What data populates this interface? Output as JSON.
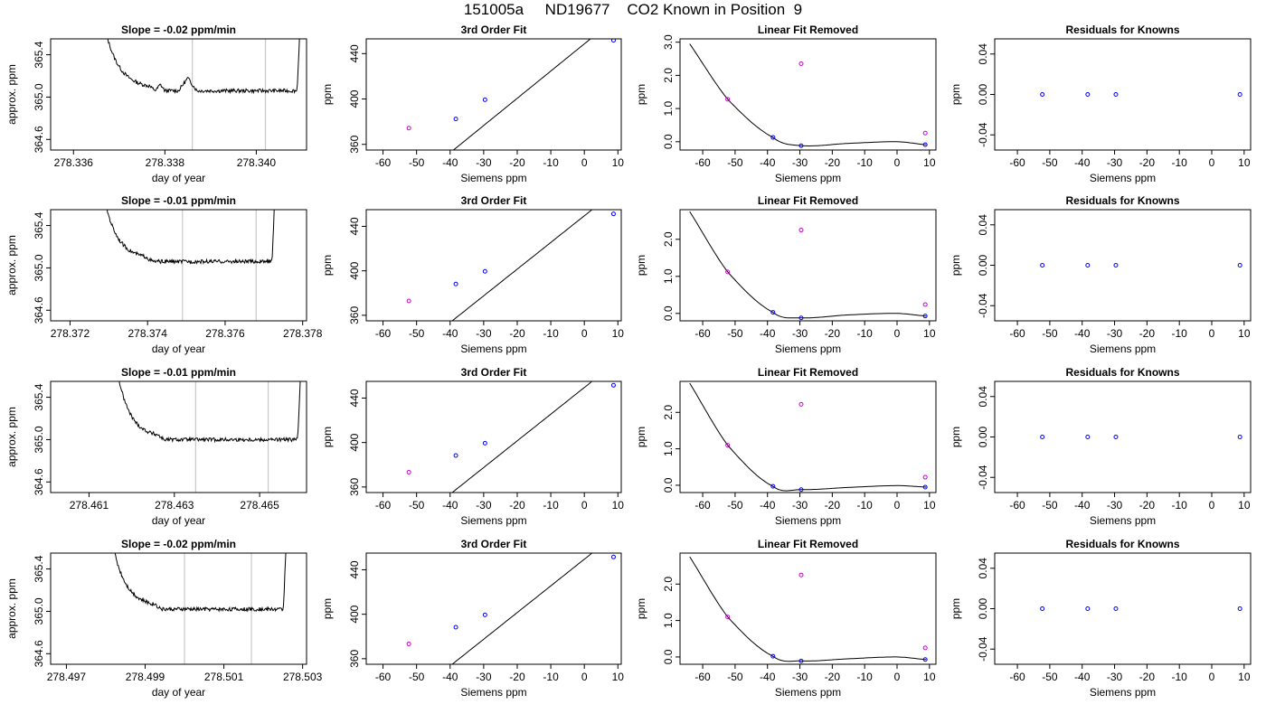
{
  "figure_title": "151005a     ND19677    CO2 Known in Position  9",
  "colors": {
    "line": "#000000",
    "known_point": "#0000ff",
    "flagged_point": "#cc00cc",
    "window_line": "#c8c8c8"
  },
  "chart_data": [
    {
      "type": "line",
      "title": "Slope =  -0.02  ppm/min",
      "xlabel": "day of year",
      "ylabel": "approx. ppm",
      "xlim": [
        278.3355,
        278.3411
      ],
      "ylim": [
        364.5,
        365.55
      ],
      "xticks": [
        278.336,
        278.338,
        278.34
      ],
      "xtick_labels": [
        "278.336",
        "278.338",
        "278.340"
      ],
      "yticks": [
        364.6,
        365.0,
        365.4
      ],
      "ytick_labels": [
        "364.6",
        "365.0",
        "365.4"
      ],
      "window_lines": [
        278.3386,
        278.3402
      ],
      "trace": {
        "x0": 278.3367,
        "x1": 278.341,
        "rise_left": 0.23,
        "rise_right": 0.975,
        "baseline": 365.06,
        "bumps": [
          {
            "x": 278.3385,
            "dy": 0.12,
            "w": 0.0002
          },
          {
            "x": 278.3379,
            "dy": 0.06,
            "w": 0.0001
          }
        ]
      }
    },
    {
      "type": "scatter",
      "title": "3rd Order Fit",
      "xlabel": "Siemens ppm",
      "ylabel": "ppm",
      "xlim": [
        -65,
        11
      ],
      "ylim": [
        355,
        453
      ],
      "xticks": [
        -60,
        -50,
        -40,
        -30,
        -20,
        -10,
        0,
        10
      ],
      "xtick_labels": [
        "-60",
        "-50",
        "-40",
        "-30",
        "-20",
        "-10",
        "0",
        "10"
      ],
      "yticks": [
        360,
        400,
        440
      ],
      "ytick_labels": [
        "360",
        "400",
        "440"
      ],
      "curve": {
        "kind": "linear",
        "a": 448.6,
        "b": 2.4,
        "x0": -64,
        "x1": 10
      },
      "points": [
        {
          "x": -52.3,
          "y": 374.3,
          "color": "flagged"
        },
        {
          "x": -38.3,
          "y": 382.4,
          "color": "known"
        },
        {
          "x": -29.6,
          "y": 399.3,
          "color": "known"
        },
        {
          "x": 8.7,
          "y": 451.7,
          "color": "known"
        }
      ]
    },
    {
      "type": "scatter",
      "title": "Linear Fit Removed",
      "xlabel": "Siemens ppm",
      "ylabel": "ppm",
      "xlim": [
        -67,
        12
      ],
      "ylim": [
        -0.25,
        3.1
      ],
      "xticks": [
        -60,
        -50,
        -40,
        -30,
        -20,
        -10,
        0,
        10
      ],
      "xtick_labels": [
        "-60",
        "-50",
        "-40",
        "-30",
        "-20",
        "-10",
        "0",
        "10"
      ],
      "yticks": [
        0.0,
        1.0,
        2.0,
        3.0
      ],
      "ytick_labels": [
        "0.0",
        "1.0",
        "2.0",
        "3.0"
      ],
      "curve": {
        "kind": "cubic",
        "x0": -64,
        "x1": 9,
        "knots": [
          [
            -64,
            2.95
          ],
          [
            -52.3,
            1.28
          ],
          [
            -38.3,
            0.13
          ],
          [
            -29.6,
            -0.12
          ],
          [
            -15,
            -0.05
          ],
          [
            0,
            0.0
          ],
          [
            8.7,
            -0.09
          ]
        ]
      },
      "points": [
        {
          "x": -52.3,
          "y": 1.28,
          "color": "flagged"
        },
        {
          "x": -38.3,
          "y": 0.13,
          "color": "known"
        },
        {
          "x": -29.6,
          "y": -0.12,
          "color": "known"
        },
        {
          "x": 8.7,
          "y": -0.09,
          "color": "known"
        },
        {
          "x": -29.6,
          "y": 2.35,
          "color": "flagged"
        },
        {
          "x": 8.7,
          "y": 0.26,
          "color": "flagged"
        }
      ]
    },
    {
      "type": "scatter",
      "title": "Residuals for Knowns",
      "xlabel": "Siemens ppm",
      "ylabel": "ppm",
      "xlim": [
        -67,
        12
      ],
      "ylim": [
        -0.055,
        0.055
      ],
      "xticks": [
        -60,
        -50,
        -40,
        -30,
        -20,
        -10,
        0,
        10
      ],
      "xtick_labels": [
        "-60",
        "-50",
        "-40",
        "-30",
        "-20",
        "-10",
        "0",
        "10"
      ],
      "yticks": [
        -0.04,
        0.0,
        0.04
      ],
      "ytick_labels": [
        "-0.04",
        "0.00",
        "0.04"
      ],
      "points": [
        {
          "x": -52.3,
          "y": 0,
          "color": "known"
        },
        {
          "x": -38.3,
          "y": 0,
          "color": "known"
        },
        {
          "x": -29.6,
          "y": 0,
          "color": "known"
        },
        {
          "x": 8.7,
          "y": 0,
          "color": "known"
        }
      ]
    },
    {
      "type": "line",
      "title": "Slope =  -0.01  ppm/min",
      "xlabel": "day of year",
      "ylabel": "approx. ppm",
      "xlim": [
        278.3715,
        278.3781
      ],
      "ylim": [
        364.5,
        365.55
      ],
      "xticks": [
        278.372,
        278.374,
        278.376,
        278.378
      ],
      "xtick_labels": [
        "278.372",
        "278.374",
        "278.376",
        "278.378"
      ],
      "window_lines": [
        278.3749,
        278.3768
      ],
      "yticks": [
        364.6,
        365.0,
        365.4
      ],
      "ytick_labels": [
        "364.6",
        "365.0",
        "365.4"
      ],
      "trace": {
        "x0": 278.3729,
        "x1": 278.3773,
        "rise_left": 0.25,
        "rise_right": 0.98,
        "baseline": 365.06,
        "bumps": []
      }
    },
    {
      "type": "scatter",
      "title": "3rd Order Fit",
      "xlabel": "Siemens ppm",
      "ylabel": "ppm",
      "xlim": [
        -65,
        11
      ],
      "ylim": [
        355,
        455
      ],
      "xticks": [
        -60,
        -50,
        -40,
        -30,
        -20,
        -10,
        0,
        10
      ],
      "xtick_labels": [
        "-60",
        "-50",
        "-40",
        "-30",
        "-20",
        "-10",
        "0",
        "10"
      ],
      "yticks": [
        360,
        400,
        440
      ],
      "ytick_labels": [
        "360",
        "400",
        "440"
      ],
      "curve": {
        "kind": "linear",
        "a": 449.5,
        "b": 2.4,
        "x0": -64,
        "x1": 10
      },
      "points": [
        {
          "x": -52.3,
          "y": 372.9,
          "color": "flagged"
        },
        {
          "x": -38.3,
          "y": 388.1,
          "color": "known"
        },
        {
          "x": -29.6,
          "y": 399.5,
          "color": "known"
        },
        {
          "x": 8.7,
          "y": 451.2,
          "color": "known"
        }
      ]
    },
    {
      "type": "scatter",
      "title": "Linear Fit Removed",
      "xlabel": "Siemens ppm",
      "ylabel": "ppm",
      "xlim": [
        -67,
        12
      ],
      "ylim": [
        -0.2,
        2.8
      ],
      "xticks": [
        -60,
        -50,
        -40,
        -30,
        -20,
        -10,
        0,
        10
      ],
      "xtick_labels": [
        "-60",
        "-50",
        "-40",
        "-30",
        "-20",
        "-10",
        "0",
        "10"
      ],
      "yticks": [
        0.0,
        1.0,
        2.0
      ],
      "ytick_labels": [
        "0.0",
        "1.0",
        "2.0"
      ],
      "curve": {
        "kind": "cubic",
        "x0": -64,
        "x1": 9,
        "knots": [
          [
            -64,
            2.75
          ],
          [
            -52.3,
            1.12
          ],
          [
            -38.3,
            0.03
          ],
          [
            -29.6,
            -0.12
          ],
          [
            -15,
            -0.04
          ],
          [
            0,
            0.0
          ],
          [
            8.7,
            -0.07
          ]
        ]
      },
      "points": [
        {
          "x": -52.3,
          "y": 1.12,
          "color": "flagged"
        },
        {
          "x": -38.3,
          "y": 0.03,
          "color": "known"
        },
        {
          "x": -29.6,
          "y": -0.12,
          "color": "known"
        },
        {
          "x": 8.7,
          "y": -0.07,
          "color": "known"
        },
        {
          "x": -29.6,
          "y": 2.25,
          "color": "flagged"
        },
        {
          "x": 8.7,
          "y": 0.24,
          "color": "flagged"
        }
      ]
    },
    {
      "type": "scatter",
      "title": "Residuals for Knowns",
      "xlabel": "Siemens ppm",
      "ylabel": "ppm",
      "xlim": [
        -67,
        12
      ],
      "ylim": [
        -0.055,
        0.055
      ],
      "xticks": [
        -60,
        -50,
        -40,
        -30,
        -20,
        -10,
        0,
        10
      ],
      "xtick_labels": [
        "-60",
        "-50",
        "-40",
        "-30",
        "-20",
        "-10",
        "0",
        "10"
      ],
      "yticks": [
        -0.04,
        0.0,
        0.04
      ],
      "ytick_labels": [
        "-0.04",
        "0.00",
        "0.04"
      ],
      "points": [
        {
          "x": -52.3,
          "y": 0,
          "color": "known"
        },
        {
          "x": -38.3,
          "y": 0,
          "color": "known"
        },
        {
          "x": -29.6,
          "y": 0,
          "color": "known"
        },
        {
          "x": 8.7,
          "y": 0,
          "color": "known"
        }
      ]
    },
    {
      "type": "line",
      "title": "Slope =  -0.01  ppm/min",
      "xlabel": "day of year",
      "ylabel": "approx. ppm",
      "xlim": [
        278.4601,
        278.4661
      ],
      "ylim": [
        364.5,
        365.55
      ],
      "xticks": [
        278.461,
        278.463,
        278.465
      ],
      "xtick_labels": [
        "278.461",
        "278.463",
        "278.465"
      ],
      "window_lines": [
        278.4635,
        278.4652
      ],
      "yticks": [
        364.6,
        365.0,
        365.4
      ],
      "ytick_labels": [
        "364.6",
        "365.0",
        "365.4"
      ],
      "trace": {
        "x0": 278.4617,
        "x1": 278.466,
        "rise_left": 0.22,
        "rise_right": 0.975,
        "baseline": 365.0,
        "bumps": []
      }
    },
    {
      "type": "scatter",
      "title": "3rd Order Fit",
      "xlabel": "Siemens ppm",
      "ylabel": "ppm",
      "xlim": [
        -65,
        11
      ],
      "ylim": [
        355,
        455
      ],
      "xticks": [
        -60,
        -50,
        -40,
        -30,
        -20,
        -10,
        0,
        10
      ],
      "xtick_labels": [
        "-60",
        "-50",
        "-40",
        "-30",
        "-20",
        "-10",
        "0",
        "10"
      ],
      "yticks": [
        360,
        400,
        440
      ],
      "ytick_labels": [
        "360",
        "400",
        "440"
      ],
      "curve": {
        "kind": "linear",
        "a": 449.5,
        "b": 2.4,
        "x0": -64,
        "x1": 10
      },
      "points": [
        {
          "x": -52.3,
          "y": 373.3,
          "color": "flagged"
        },
        {
          "x": -38.3,
          "y": 388.3,
          "color": "known"
        },
        {
          "x": -29.6,
          "y": 399.4,
          "color": "known"
        },
        {
          "x": 8.7,
          "y": 451.5,
          "color": "known"
        }
      ]
    },
    {
      "type": "scatter",
      "title": "Linear Fit Removed",
      "xlabel": "Siemens ppm",
      "ylabel": "ppm",
      "xlim": [
        -67,
        12
      ],
      "ylim": [
        -0.2,
        2.85
      ],
      "xticks": [
        -60,
        -50,
        -40,
        -30,
        -20,
        -10,
        0,
        10
      ],
      "xtick_labels": [
        "-60",
        "-50",
        "-40",
        "-30",
        "-20",
        "-10",
        "0",
        "10"
      ],
      "yticks": [
        0.0,
        1.0,
        2.0
      ],
      "ytick_labels": [
        "0.0",
        "1.0",
        "2.0"
      ],
      "curve": {
        "kind": "cubic",
        "x0": -64,
        "x1": 9,
        "knots": [
          [
            -64,
            2.8
          ],
          [
            -52.3,
            1.1
          ],
          [
            -38.3,
            -0.03
          ],
          [
            -29.6,
            -0.12
          ],
          [
            -15,
            -0.06
          ],
          [
            0,
            -0.01
          ],
          [
            8.7,
            -0.05
          ]
        ]
      },
      "points": [
        {
          "x": -52.3,
          "y": 1.1,
          "color": "flagged"
        },
        {
          "x": -38.3,
          "y": -0.03,
          "color": "known"
        },
        {
          "x": -29.6,
          "y": -0.12,
          "color": "known"
        },
        {
          "x": 8.7,
          "y": -0.05,
          "color": "known"
        },
        {
          "x": -29.6,
          "y": 2.22,
          "color": "flagged"
        },
        {
          "x": 8.7,
          "y": 0.22,
          "color": "flagged"
        }
      ]
    },
    {
      "type": "scatter",
      "title": "Residuals for Knowns",
      "xlabel": "Siemens ppm",
      "ylabel": "ppm",
      "xlim": [
        -67,
        12
      ],
      "ylim": [
        -0.055,
        0.055
      ],
      "xticks": [
        -60,
        -50,
        -40,
        -30,
        -20,
        -10,
        0,
        10
      ],
      "xtick_labels": [
        "-60",
        "-50",
        "-40",
        "-30",
        "-20",
        "-10",
        "0",
        "10"
      ],
      "yticks": [
        -0.04,
        0.0,
        0.04
      ],
      "ytick_labels": [
        "-0.04",
        "0.00",
        "0.04"
      ],
      "points": [
        {
          "x": -52.3,
          "y": 0,
          "color": "known"
        },
        {
          "x": -38.3,
          "y": 0,
          "color": "known"
        },
        {
          "x": -29.6,
          "y": 0,
          "color": "known"
        },
        {
          "x": 8.7,
          "y": 0,
          "color": "known"
        }
      ]
    },
    {
      "type": "line",
      "title": "Slope =  -0.02  ppm/min",
      "xlabel": "day of year",
      "ylabel": "approx. ppm",
      "xlim": [
        278.4966,
        278.5031
      ],
      "ylim": [
        364.5,
        365.55
      ],
      "xticks": [
        278.497,
        278.499,
        278.501,
        278.503
      ],
      "xtick_labels": [
        "278.497",
        "278.499",
        "278.501",
        "278.503"
      ],
      "window_lines": [
        278.5,
        278.5017
      ],
      "yticks": [
        364.6,
        365.0,
        365.4
      ],
      "ytick_labels": [
        "364.6",
        "365.0",
        "365.4"
      ],
      "trace": {
        "x0": 278.4982,
        "x1": 278.5026,
        "rise_left": 0.25,
        "rise_right": 0.98,
        "baseline": 365.02,
        "bumps": []
      }
    },
    {
      "type": "scatter",
      "title": "3rd Order Fit",
      "xlabel": "Siemens ppm",
      "ylabel": "ppm",
      "xlim": [
        -65,
        11
      ],
      "ylim": [
        355,
        455
      ],
      "xticks": [
        -60,
        -50,
        -40,
        -30,
        -20,
        -10,
        0,
        10
      ],
      "xtick_labels": [
        "-60",
        "-50",
        "-40",
        "-30",
        "-20",
        "-10",
        "0",
        "10"
      ],
      "yticks": [
        360,
        400,
        440
      ],
      "ytick_labels": [
        "360",
        "400",
        "440"
      ],
      "curve": {
        "kind": "linear",
        "a": 449.5,
        "b": 2.4,
        "x0": -64,
        "x1": 10
      },
      "points": [
        {
          "x": -52.3,
          "y": 373.3,
          "color": "flagged"
        },
        {
          "x": -38.3,
          "y": 388.3,
          "color": "known"
        },
        {
          "x": -29.6,
          "y": 399.4,
          "color": "known"
        },
        {
          "x": 8.7,
          "y": 451.5,
          "color": "known"
        }
      ]
    },
    {
      "type": "scatter",
      "title": "Linear Fit Removed",
      "xlabel": "Siemens ppm",
      "ylabel": "ppm",
      "xlim": [
        -67,
        12
      ],
      "ylim": [
        -0.2,
        2.85
      ],
      "xticks": [
        -60,
        -50,
        -40,
        -30,
        -20,
        -10,
        0,
        10
      ],
      "xtick_labels": [
        "-60",
        "-50",
        "-40",
        "-30",
        "-20",
        "-10",
        "0",
        "10"
      ],
      "yticks": [
        0.0,
        1.0,
        2.0
      ],
      "ytick_labels": [
        "0.0",
        "1.0",
        "2.0"
      ],
      "curve": {
        "kind": "cubic",
        "x0": -64,
        "x1": 9,
        "knots": [
          [
            -64,
            2.75
          ],
          [
            -52.3,
            1.1
          ],
          [
            -38.3,
            0.02
          ],
          [
            -29.6,
            -0.11
          ],
          [
            -15,
            -0.05
          ],
          [
            0,
            0.0
          ],
          [
            8.7,
            -0.07
          ]
        ]
      },
      "points": [
        {
          "x": -52.3,
          "y": 1.1,
          "color": "flagged"
        },
        {
          "x": -38.3,
          "y": 0.02,
          "color": "known"
        },
        {
          "x": -29.6,
          "y": -0.11,
          "color": "known"
        },
        {
          "x": 8.7,
          "y": -0.07,
          "color": "known"
        },
        {
          "x": -29.6,
          "y": 2.25,
          "color": "flagged"
        },
        {
          "x": 8.7,
          "y": 0.25,
          "color": "flagged"
        }
      ]
    },
    {
      "type": "scatter",
      "title": "Residuals for Knowns",
      "xlabel": "Siemens ppm",
      "ylabel": "ppm",
      "xlim": [
        -67,
        12
      ],
      "ylim": [
        -0.055,
        0.055
      ],
      "xticks": [
        -60,
        -50,
        -40,
        -30,
        -20,
        -10,
        0,
        10
      ],
      "xtick_labels": [
        "-60",
        "-50",
        "-40",
        "-30",
        "-20",
        "-10",
        "0",
        "10"
      ],
      "yticks": [
        -0.04,
        0.0,
        0.04
      ],
      "ytick_labels": [
        "-0.04",
        "0.00",
        "0.04"
      ],
      "points": [
        {
          "x": -52.3,
          "y": 0,
          "color": "known"
        },
        {
          "x": -38.3,
          "y": 0,
          "color": "known"
        },
        {
          "x": -29.6,
          "y": 0,
          "color": "known"
        },
        {
          "x": 8.7,
          "y": 0,
          "color": "known"
        }
      ]
    }
  ]
}
